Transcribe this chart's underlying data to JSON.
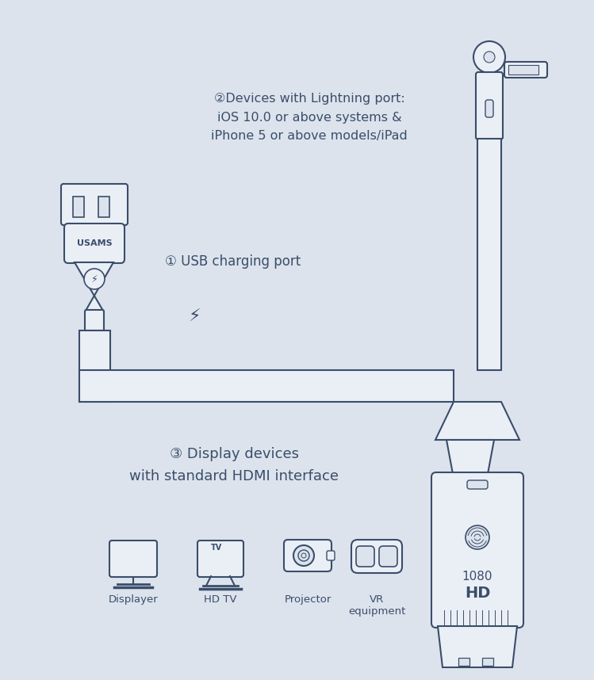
{
  "bg_color": "#dce3ec",
  "line_color": "#3a4d6b",
  "fill_color": "#eaeff6",
  "label1": "① USB charging port",
  "label2": "②Devices with Lightning port:\niOS 10.0 or above systems &\niPhone 5 or above models/iPad",
  "label3": "③ Display devices\nwith standard HDMI interface",
  "device_labels": [
    "Displayer",
    "HD TV",
    "Projector",
    "VR\nequipment"
  ],
  "brand": "USAMS",
  "hdmi_label1": "1080",
  "hdmi_label2": "HD",
  "figsize": [
    7.49,
    8.58
  ],
  "dpi": 100
}
